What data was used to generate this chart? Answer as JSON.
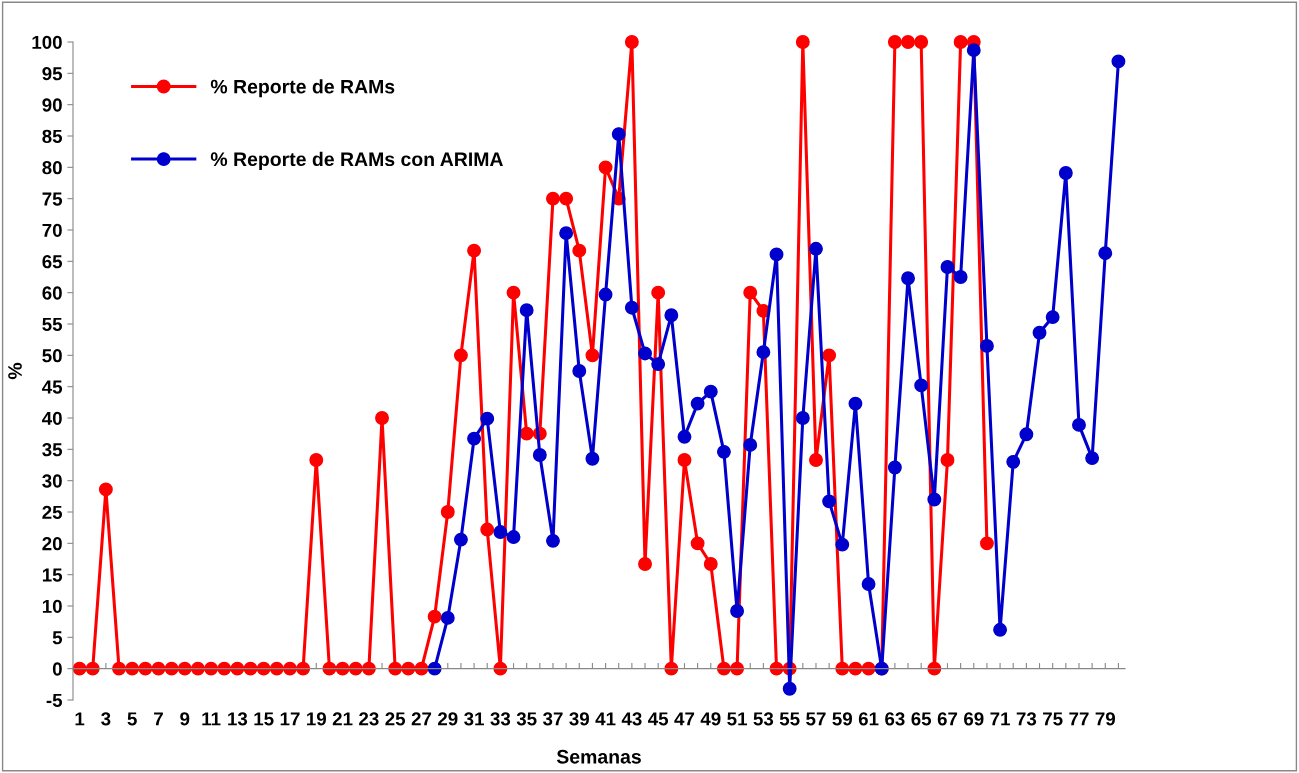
{
  "chart_data": {
    "type": "line",
    "xlabel": "Semanas",
    "ylabel": "%",
    "categories": [
      "1",
      null,
      "3",
      null,
      "5",
      null,
      "7",
      null,
      "9",
      null,
      "11",
      null,
      "13",
      null,
      "15",
      null,
      "17",
      null,
      "19",
      null,
      "21",
      null,
      "23",
      null,
      "25",
      null,
      "27",
      null,
      "29",
      null,
      "31",
      null,
      "33",
      null,
      "35",
      null,
      "37",
      null,
      "39",
      null,
      "41",
      null,
      "43",
      null,
      "45",
      null,
      "47",
      null,
      "49",
      null,
      "51",
      null,
      "53",
      null,
      "55",
      null,
      "57",
      null,
      "59",
      null,
      "61",
      null,
      "63",
      null,
      "65",
      null,
      "67",
      null,
      "69",
      null,
      "71",
      null,
      "73",
      null,
      "75",
      null,
      "77",
      null,
      "79",
      null
    ],
    "series": [
      {
        "name": "% Reporte de RAMs",
        "color": "#ff0000",
        "values": [
          0,
          0,
          28.6,
          0,
          0,
          0,
          0,
          0,
          0,
          0,
          0,
          0,
          0,
          0,
          0,
          0,
          0,
          0,
          33.3,
          0,
          0,
          0,
          0,
          40,
          0,
          0,
          0,
          8.3,
          25,
          50,
          66.7,
          22.2,
          0,
          60,
          37.5,
          37.5,
          75,
          75,
          66.7,
          50,
          80,
          75,
          100,
          16.7,
          60,
          0,
          33.3,
          20,
          16.7,
          0,
          0,
          60,
          57.1,
          0,
          0,
          100,
          33.3,
          50,
          0,
          0,
          0,
          0,
          100,
          100,
          100,
          0,
          33.3,
          100,
          100,
          20,
          null,
          null,
          null,
          null,
          null,
          null,
          null,
          null,
          null,
          null
        ]
      },
      {
        "name": "% Reporte de RAMs con ARIMA",
        "color": "#0000cc",
        "values": [
          null,
          null,
          null,
          null,
          null,
          null,
          null,
          null,
          null,
          null,
          null,
          null,
          null,
          null,
          null,
          null,
          null,
          null,
          null,
          null,
          null,
          null,
          null,
          null,
          null,
          null,
          null,
          0,
          8.1,
          20.6,
          36.7,
          39.9,
          21.8,
          21,
          57.2,
          34.1,
          20.4,
          69.5,
          47.5,
          33.5,
          59.7,
          85.3,
          57.6,
          50.3,
          48.6,
          56.4,
          37,
          42.3,
          44.2,
          34.6,
          9.2,
          35.7,
          50.5,
          66.1,
          -3.2,
          40,
          67,
          26.7,
          19.8,
          42.3,
          13.5,
          0,
          32.1,
          62.3,
          45.2,
          27,
          64.1,
          62.5,
          98.7,
          51.5,
          6.2,
          33,
          37.4,
          53.6,
          56.1,
          79.1,
          38.9,
          33.6,
          66.3,
          96.9
        ]
      }
    ],
    "ylim": [
      -5,
      100
    ],
    "yticks": [
      -5,
      0,
      5,
      10,
      15,
      20,
      25,
      30,
      35,
      40,
      45,
      50,
      55,
      60,
      65,
      70,
      75,
      80,
      85,
      90,
      95,
      100
    ],
    "grid": false,
    "legend": "top left",
    "marker": "circle",
    "line_style": "solid"
  }
}
